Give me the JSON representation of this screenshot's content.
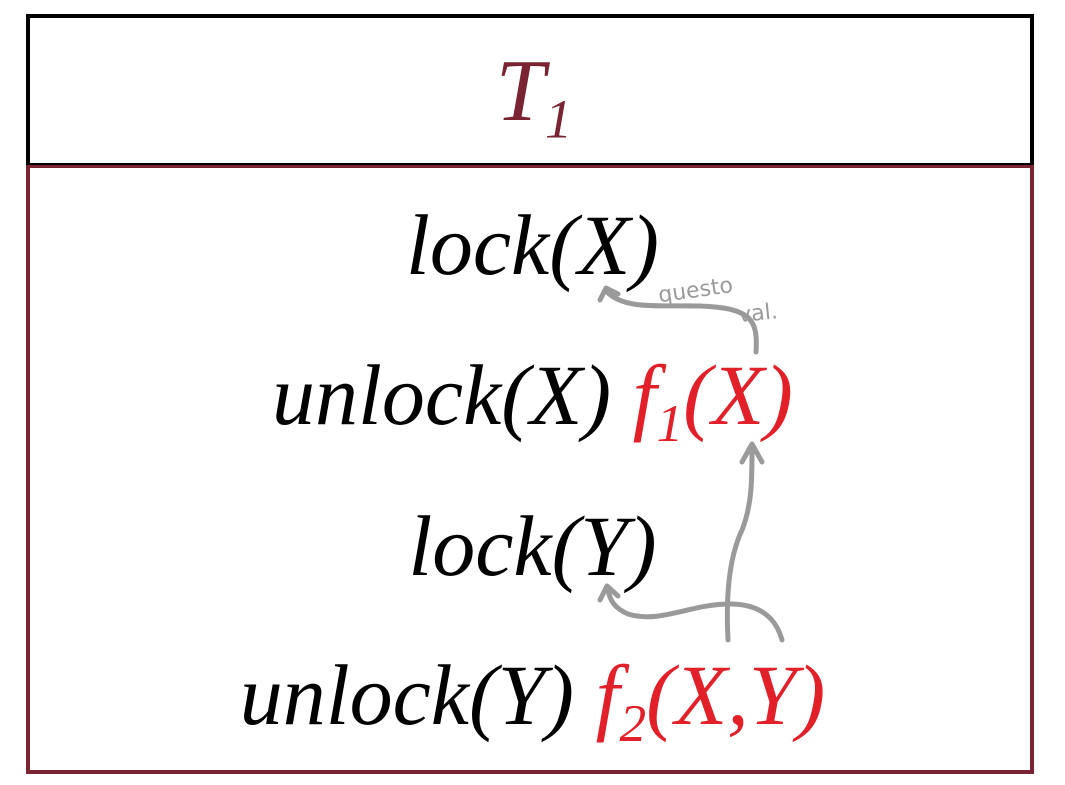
{
  "header": {
    "title_base": "T",
    "title_sub": "1"
  },
  "operations": [
    {
      "op": "lock(X)"
    },
    {
      "op": "unlock(X)",
      "func_name": "f",
      "func_sub": "1",
      "func_args": "(X)"
    },
    {
      "op": "lock(Y)"
    },
    {
      "op": "unlock(Y)",
      "func_name": "f",
      "func_sub": "2",
      "func_args": "(X,Y)"
    }
  ],
  "annotation": {
    "word1": "questo",
    "word2": "val."
  },
  "colors": {
    "header_text": "#7a2433",
    "border_body": "#7a2433",
    "border_header": "#000000",
    "function_text": "#e2202a",
    "annotation": "#9a9a9a"
  }
}
